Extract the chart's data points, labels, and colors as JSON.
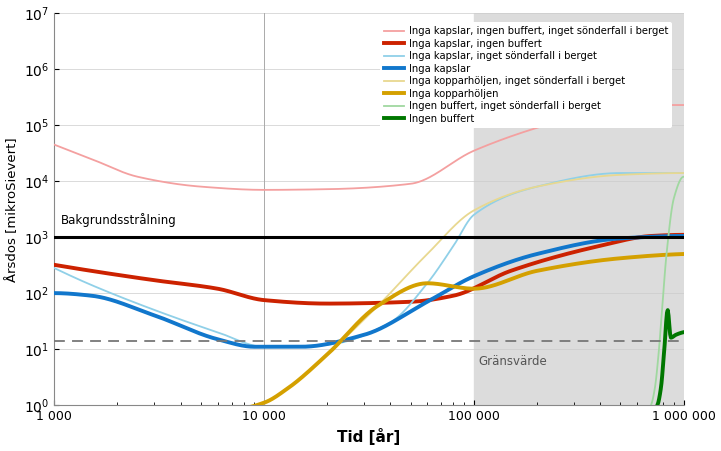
{
  "title": "",
  "xlabel": "Tid [år]",
  "ylabel": "Årsdos [mikroSievert]",
  "xlim": [
    1000,
    1000000
  ],
  "ylim": [
    1,
    10000000.0
  ],
  "background_shading_start": 100000,
  "background_color": "#dcdcdc",
  "reference_line_value": 1000,
  "reference_line_label": "Bakgrundsstrålning",
  "limit_line_value": 14,
  "limit_line_label": "Gränsvärde",
  "legend_entries": [
    "Inga kapslar, ingen buffert, inget sönderfall i berget",
    "Inga kapslar, ingen buffert",
    "Inga kapslar, inget sönderfall i berget",
    "Inga kapslar",
    "Inga kopparhöljen, inget sönderfall i berget",
    "Inga kopparhöljen",
    "Ingen buffert, inget sönderfall i berget",
    "Ingen buffert"
  ],
  "line_colors": [
    "#f4a0a0",
    "#cc2200",
    "#90d0e8",
    "#1177cc",
    "#e8d890",
    "#d4a000",
    "#a0d8a0",
    "#007700"
  ],
  "line_widths": [
    1.3,
    2.8,
    1.3,
    2.8,
    1.3,
    2.8,
    1.3,
    2.8
  ],
  "curve1_pts": [
    [
      1000,
      45000.0
    ],
    [
      1500,
      25000.0
    ],
    [
      2500,
      12000.0
    ],
    [
      5000,
      8000.0
    ],
    [
      10000,
      7000.0
    ],
    [
      20000,
      7200.0
    ],
    [
      50000,
      9000.0
    ],
    [
      100000,
      35000.0
    ],
    [
      200000,
      90000.0
    ],
    [
      400000,
      180000.0
    ],
    [
      700000,
      230000.0
    ],
    [
      1000000,
      230000.0
    ]
  ],
  "curve2_pts": [
    [
      1000,
      320.0
    ],
    [
      1500,
      250.0
    ],
    [
      3000,
      170.0
    ],
    [
      6000,
      120.0
    ],
    [
      10000,
      75.0
    ],
    [
      20000,
      65.0
    ],
    [
      50000,
      70.0
    ],
    [
      80000,
      90.0
    ],
    [
      150000,
      250.0
    ],
    [
      400000,
      700.0
    ],
    [
      700000,
      1050.0
    ],
    [
      1000000,
      1100.0
    ]
  ],
  "curve3_pts": [
    [
      1000,
      280.0
    ],
    [
      1500,
      140.0
    ],
    [
      3000,
      50.0
    ],
    [
      6000,
      20.0
    ],
    [
      10000,
      11.0
    ],
    [
      20000,
      12.0
    ],
    [
      40000,
      30.0
    ],
    [
      60000,
      150.0
    ],
    [
      80000,
      700.0
    ],
    [
      100000,
      2500.0
    ],
    [
      200000,
      8000.0
    ],
    [
      500000,
      14000.0
    ],
    [
      1000000,
      14000.0
    ]
  ],
  "curve4_pts": [
    [
      1000,
      100.0
    ],
    [
      1500,
      90.0
    ],
    [
      3000,
      40.0
    ],
    [
      6000,
      15.0
    ],
    [
      9000,
      11.0
    ],
    [
      15000,
      11.0
    ],
    [
      30000,
      18.0
    ],
    [
      60000,
      70.0
    ],
    [
      100000,
      200.0
    ],
    [
      200000,
      500.0
    ],
    [
      500000,
      950.0
    ],
    [
      1000000,
      1050.0
    ]
  ],
  "curve5_pts": [
    [
      1000,
      0.9
    ],
    [
      3000,
      0.9
    ],
    [
      8000,
      0.9
    ],
    [
      10000,
      1.1
    ],
    [
      13000,
      2.0
    ],
    [
      20000,
      8.0
    ],
    [
      35000,
      60.0
    ],
    [
      60000,
      500.0
    ],
    [
      100000,
      3000.0
    ],
    [
      200000,
      8000.0
    ],
    [
      500000,
      13000.0
    ],
    [
      1000000,
      14000.0
    ]
  ],
  "curve6_pts": [
    [
      1000,
      0.9
    ],
    [
      3000,
      0.9
    ],
    [
      8000,
      0.9
    ],
    [
      10000,
      1.1
    ],
    [
      13000,
      2.0
    ],
    [
      20000,
      8.0
    ],
    [
      35000,
      60.0
    ],
    [
      60000,
      150.0
    ],
    [
      100000,
      120.0
    ],
    [
      200000,
      250.0
    ],
    [
      500000,
      420.0
    ],
    [
      1000000,
      500.0
    ]
  ],
  "curve7_start": 700000,
  "curve7_pts": [
    [
      700000,
      1.0
    ],
    [
      730000,
      2.0
    ],
    [
      760000,
      8.0
    ],
    [
      790000,
      50.0
    ],
    [
      830000,
      500.0
    ],
    [
      900000,
      5000.0
    ],
    [
      1000000,
      12000.0
    ]
  ],
  "curve8_start": 750000,
  "curve8_pts": [
    [
      750000,
      1.0
    ],
    [
      780000,
      2.0
    ],
    [
      810000,
      10.0
    ],
    [
      840000,
      50.0
    ],
    [
      870000,
      16.0
    ],
    [
      920000,
      18.0
    ],
    [
      1000000,
      20.0
    ]
  ]
}
